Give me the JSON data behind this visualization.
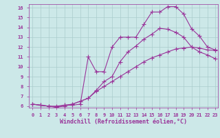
{
  "xlabel": "Windchill (Refroidissement éolien,°C)",
  "bg_color": "#cce8e8",
  "line_color": "#993399",
  "grid_color": "#aacccc",
  "xlim": [
    -0.5,
    23.3
  ],
  "ylim": [
    5.85,
    16.35
  ],
  "xticks": [
    0,
    1,
    2,
    3,
    4,
    5,
    6,
    7,
    8,
    9,
    10,
    11,
    12,
    13,
    14,
    15,
    16,
    17,
    18,
    19,
    20,
    21,
    22,
    23
  ],
  "yticks": [
    6,
    7,
    8,
    9,
    10,
    11,
    12,
    13,
    14,
    15,
    16
  ],
  "curve1_x": [
    0,
    1,
    2,
    3,
    4,
    5,
    6,
    7,
    8,
    9,
    10,
    11,
    12,
    13,
    14,
    15,
    16,
    17,
    18,
    19,
    20,
    21,
    22,
    23
  ],
  "curve1_y": [
    6.2,
    6.1,
    6.0,
    6.0,
    6.1,
    6.1,
    6.2,
    11.0,
    9.5,
    9.5,
    12.0,
    13.0,
    13.0,
    13.0,
    14.3,
    15.55,
    15.55,
    16.1,
    16.1,
    15.35,
    13.85,
    13.1,
    12.0,
    11.7
  ],
  "curve2_x": [
    0,
    1,
    2,
    3,
    4,
    5,
    6,
    7,
    8,
    9,
    10,
    11,
    12,
    13,
    14,
    15,
    16,
    17,
    18,
    19,
    20,
    21,
    22,
    23
  ],
  "curve2_y": [
    6.2,
    6.1,
    6.0,
    5.9,
    6.1,
    6.2,
    6.5,
    6.8,
    7.6,
    8.5,
    9.0,
    10.5,
    11.5,
    12.1,
    12.8,
    13.3,
    13.9,
    13.8,
    13.5,
    13.0,
    12.0,
    11.5,
    11.2,
    10.8
  ],
  "curve3_x": [
    0,
    1,
    2,
    3,
    4,
    5,
    6,
    7,
    8,
    9,
    10,
    11,
    12,
    13,
    14,
    15,
    16,
    17,
    18,
    19,
    20,
    21,
    22,
    23
  ],
  "curve3_y": [
    6.2,
    6.1,
    6.0,
    5.9,
    6.0,
    6.2,
    6.5,
    6.8,
    7.5,
    8.0,
    8.5,
    9.0,
    9.5,
    10.0,
    10.5,
    10.9,
    11.2,
    11.5,
    11.8,
    11.9,
    12.0,
    11.9,
    11.7,
    11.65
  ],
  "marker": "+",
  "markersize": 4,
  "linewidth": 0.8,
  "axis_fontsize": 6,
  "tick_fontsize": 5
}
